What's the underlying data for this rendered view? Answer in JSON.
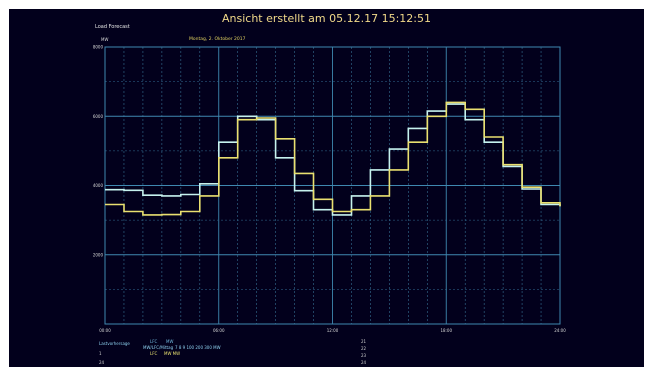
{
  "screen": {
    "title": "Ansicht erstellt am 05.12.17 15:12:51",
    "app_name": "Load Forecast",
    "plot_date": "Montag, 2. Oktober 2017"
  },
  "colors": {
    "background": "#02001c",
    "grid_major": "#3f88b0",
    "grid_minor": "#356e92",
    "series_cyan": "#c6f2ee",
    "series_yellow": "#e9e070",
    "title": "#f1d98a"
  },
  "chart_data": {
    "type": "line",
    "title": "",
    "xlabel": "",
    "ylabel": "MW",
    "x_ticks": [
      "00:00",
      "06:00",
      "12:00",
      "18:00",
      "24:00"
    ],
    "xlim": [
      0,
      24
    ],
    "ylim": [
      0,
      8000
    ],
    "y_ticks": [
      "8000",
      "6000",
      "4000",
      "2000",
      ""
    ],
    "grid": true,
    "series": [
      {
        "name": "",
        "color": "#c6f2ee",
        "stepped": true,
        "x": [
          0,
          1,
          2,
          3,
          4,
          5,
          6,
          7,
          8,
          9,
          10,
          11,
          12,
          13,
          14,
          15,
          16,
          17,
          18,
          19,
          20,
          21,
          22,
          23,
          24
        ],
        "y": [
          3880,
          3860,
          3720,
          3700,
          3740,
          4050,
          5250,
          6000,
          5900,
          4800,
          3850,
          3300,
          3150,
          3700,
          4450,
          5050,
          5650,
          6150,
          6350,
          5900,
          5250,
          4550,
          3900,
          3450,
          3400
        ]
      },
      {
        "name": "",
        "color": "#e9e070",
        "stepped": true,
        "x": [
          0,
          1,
          2,
          3,
          4,
          5,
          6,
          7,
          8,
          9,
          10,
          11,
          12,
          13,
          14,
          15,
          16,
          17,
          18,
          19,
          20,
          21,
          22,
          23,
          24
        ],
        "y": [
          3450,
          3250,
          3150,
          3160,
          3250,
          3700,
          4800,
          5900,
          5950,
          5350,
          4350,
          3600,
          3250,
          3300,
          3700,
          4450,
          5250,
          6000,
          6400,
          6200,
          5400,
          4600,
          3950,
          3500,
          3400
        ]
      }
    ]
  },
  "footer": {
    "legend_row1_a": "Lastvorhersage",
    "legend_row1_b": "LFC",
    "legend_row1_c": "MW",
    "legend_row1_d": "MW/LFC/Mittag",
    "legend_row1_e": "7 8 9 100 200 300 MW",
    "legend_row2_a": "1",
    "legend_row2_b": "LFC",
    "legend_row2_c": "MW MW",
    "legend_row3_a": "24",
    "right_col_1": "21",
    "right_col_2": "22",
    "right_col_3": "23",
    "right_col_4": "24"
  }
}
